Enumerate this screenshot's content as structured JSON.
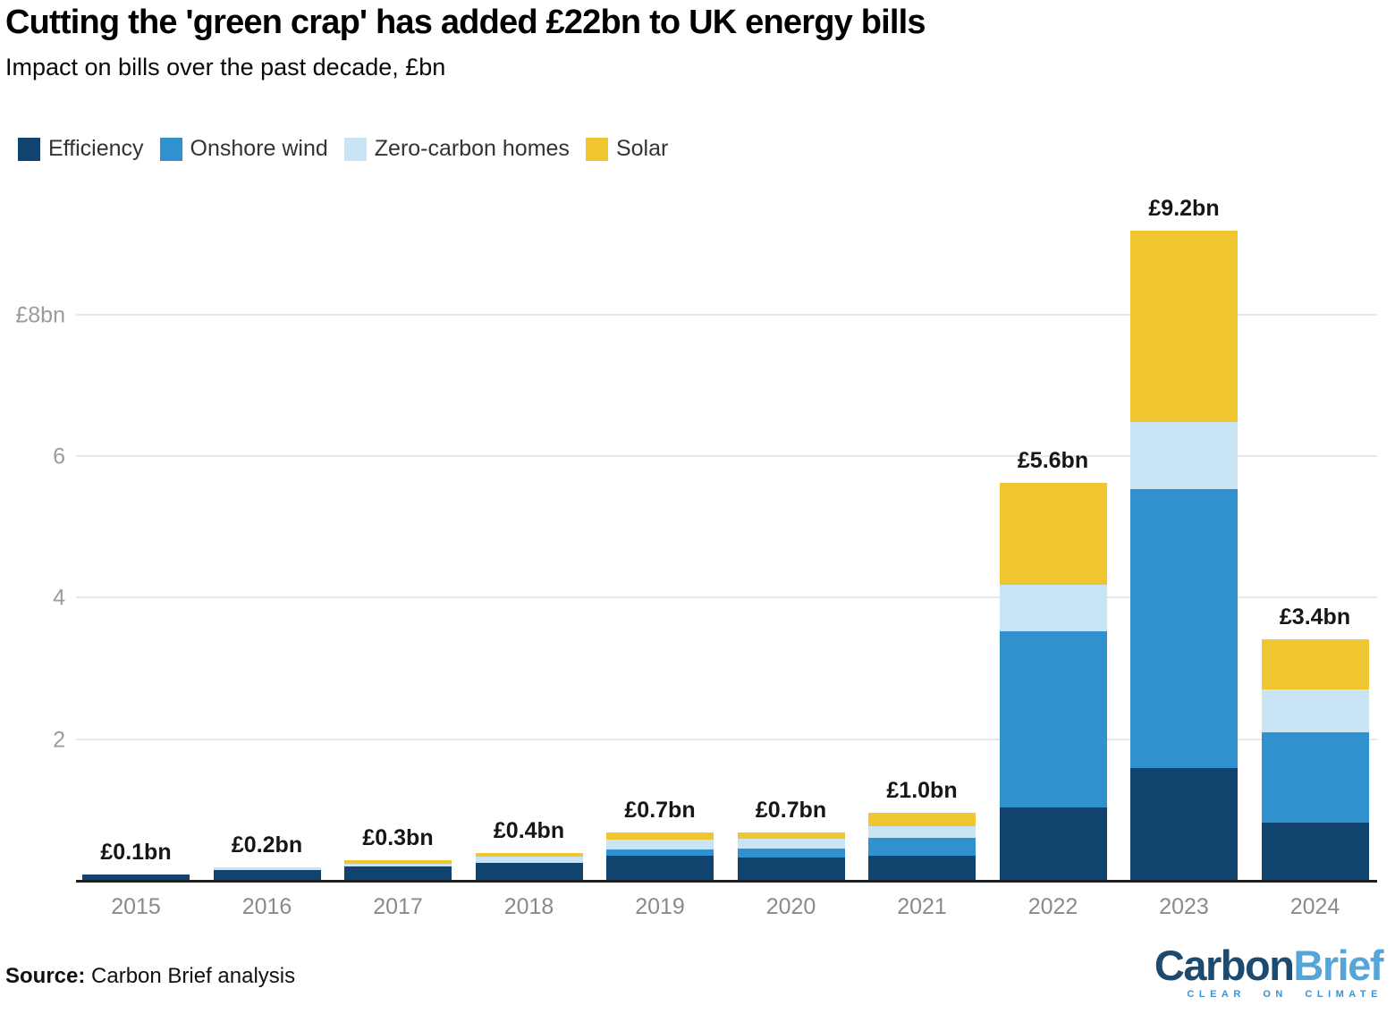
{
  "header": {
    "title": "Cutting the 'green crap' has added £22bn to UK energy bills",
    "subtitle": "Impact on bills over the past decade, £bn"
  },
  "legend": {
    "items": [
      {
        "label": "Efficiency",
        "color": "#10436E"
      },
      {
        "label": "Onshore wind",
        "color": "#3190CE"
      },
      {
        "label": "Zero-carbon homes",
        "color": "#C9E4F5"
      },
      {
        "label": "Solar",
        "color": "#EFC62F"
      }
    ]
  },
  "chart_data": {
    "type": "bar",
    "stacked": true,
    "title": "Cutting the 'green crap' has added £22bn to UK energy bills",
    "subtitle": "Impact on bills over the past decade, £bn",
    "categories": [
      "2015",
      "2016",
      "2017",
      "2018",
      "2019",
      "2020",
      "2021",
      "2022",
      "2023",
      "2024"
    ],
    "series": [
      {
        "name": "Efficiency",
        "color": "#10436E",
        "values": [
          0.1,
          0.16,
          0.21,
          0.27,
          0.37,
          0.34,
          0.37,
          1.05,
          1.6,
          0.84
        ]
      },
      {
        "name": "Onshore wind",
        "color": "#3190CE",
        "values": [
          0,
          0,
          0,
          0,
          0.09,
          0.13,
          0.25,
          2.49,
          3.95,
          1.27
        ]
      },
      {
        "name": "Zero-carbon homes",
        "color": "#C9E4F5",
        "values": [
          0,
          0.04,
          0.04,
          0.08,
          0.13,
          0.14,
          0.16,
          0.66,
          0.95,
          0.61
        ]
      },
      {
        "name": "Solar",
        "color": "#EFC62F",
        "values": [
          0,
          0,
          0.05,
          0.05,
          0.11,
          0.09,
          0.19,
          1.43,
          2.7,
          0.7
        ]
      }
    ],
    "total_labels": [
      "£0.1bn",
      "£0.2bn",
      "£0.3bn",
      "£0.4bn",
      "£0.7bn",
      "£0.7bn",
      "£1.0bn",
      "£5.6bn",
      "£9.2bn",
      "£3.4bn"
    ],
    "xlabel": "",
    "ylabel": "£bn",
    "ylim": [
      0,
      9.3
    ],
    "grid": true,
    "legend_position": "top",
    "yaxis": {
      "ticks": [
        {
          "value": 2,
          "label": "2"
        },
        {
          "value": 4,
          "label": "4"
        },
        {
          "value": 6,
          "label": "6"
        },
        {
          "value": 8,
          "label": "£8bn"
        }
      ]
    }
  },
  "footer": {
    "source_label": "Source:",
    "source_text": "Carbon Brief analysis",
    "logo": {
      "part1": "Carbon",
      "part2": "Brief",
      "tagline": "CLEAR ON CLIMATE"
    }
  }
}
